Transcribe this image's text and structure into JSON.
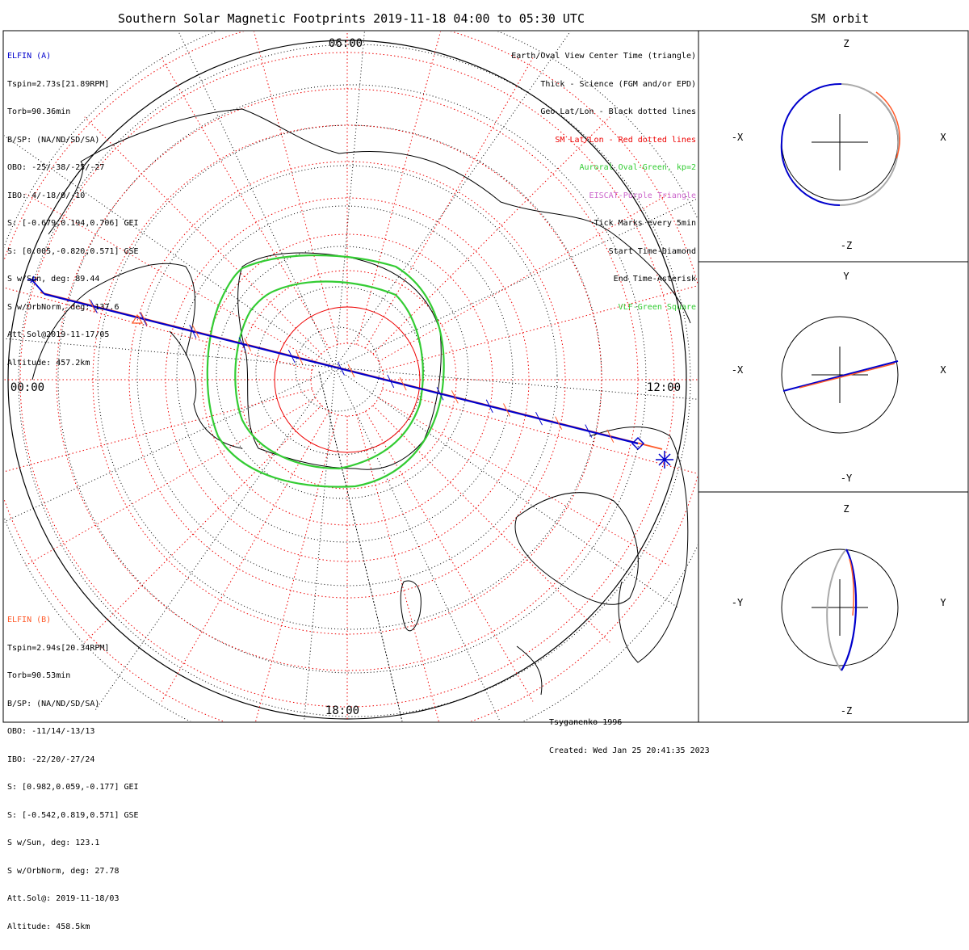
{
  "title": "Southern Solar Magnetic Footprints 2019-11-18 04:00 to 05:30 UTC",
  "sm_orbit_title": "SM orbit",
  "elfin_a": {
    "name": "ELFIN (A)",
    "lines": [
      "Tspin=2.73s[21.89RPM]",
      "Torb=90.36min",
      "B/SP: (NA/ND/SD/SA)",
      "OBO: -25/-38/-25/-27",
      "IBO: 4/-18/0/-10",
      "S: [-0.679,0.194,0.706] GEI",
      "S: [0.005,-0.820,0.571] GSE",
      "S w/Sun, deg: 89.44",
      "S w/OrbNorm, deg: 137.6",
      "Att.Sol@2019-11-17/05",
      "Altitude: 457.2km"
    ],
    "color": "#0000cc"
  },
  "elfin_b": {
    "name": "ELFIN (B)",
    "lines": [
      "Tspin=2.94s[20.34RPM]",
      "Torb=90.53min",
      "B/SP: (NA/ND/SD/SA)",
      "OBO: -11/14/-13/13",
      "IBO: -22/20/-27/24",
      "S: [0.982,0.059,-0.177] GEI",
      "S: [-0.542,0.819,0.571] GSE",
      "S w/Sun, deg: 123.1",
      "S w/OrbNorm, deg: 27.78",
      "Att.Sol@: 2019-11-18/03",
      "Altitude: 458.5km"
    ],
    "color": "#ff5a2a"
  },
  "legend": [
    {
      "text": "Earth/Oval View Center Time (triangle)",
      "color": "#000000"
    },
    {
      "text": "Thick - Science (FGM and/or EPD)",
      "color": "#000000"
    },
    {
      "text": "Geo Lat/Lon - Black dotted lines",
      "color": "#000000"
    },
    {
      "text": "SM Lat/Lon - Red dotted lines",
      "color": "#ee0000"
    },
    {
      "text": "Auroral Oval-Green, kp=2",
      "color": "#33cc33"
    },
    {
      "text": "EISCAT-Purple Triangle",
      "color": "#cc66cc"
    },
    {
      "text": "Tick Marks every 5min",
      "color": "#000000"
    },
    {
      "text": "Start Time-Diamond",
      "color": "#000000"
    },
    {
      "text": "End Time-Asterisk",
      "color": "#000000"
    },
    {
      "text": "VLF-Green Square",
      "color": "#33cc33"
    }
  ],
  "credit": [
    "Tsyganenko-1996",
    "Created: Wed Jan 25 20:41:35 2023"
  ],
  "mlt_labels": {
    "top": "06:00",
    "left": "00:00",
    "right": "12:00",
    "bottom": "18:00"
  },
  "orbit_panels": [
    {
      "top": "Z",
      "bottom": "-Z",
      "left": "-X",
      "right": "X"
    },
    {
      "top": "Y",
      "bottom": "-Y",
      "left": "-X",
      "right": "X"
    },
    {
      "top": "Z",
      "bottom": "-Z",
      "left": "-Y",
      "right": "Y"
    }
  ],
  "chart_data": {
    "type": "polar-map",
    "projection": "southern hemisphere, SM coordinates",
    "mlt_ticks": [
      "00:00",
      "06:00",
      "12:00",
      "18:00"
    ],
    "sm_latitude_rings": 10,
    "geo_graticule": "black dotted",
    "auroral_oval_kp": 2,
    "series": [
      {
        "name": "ELFIN (A)",
        "color": "#0000cc"
      },
      {
        "name": "ELFIN (B)",
        "color": "#ff5a2a"
      }
    ]
  }
}
